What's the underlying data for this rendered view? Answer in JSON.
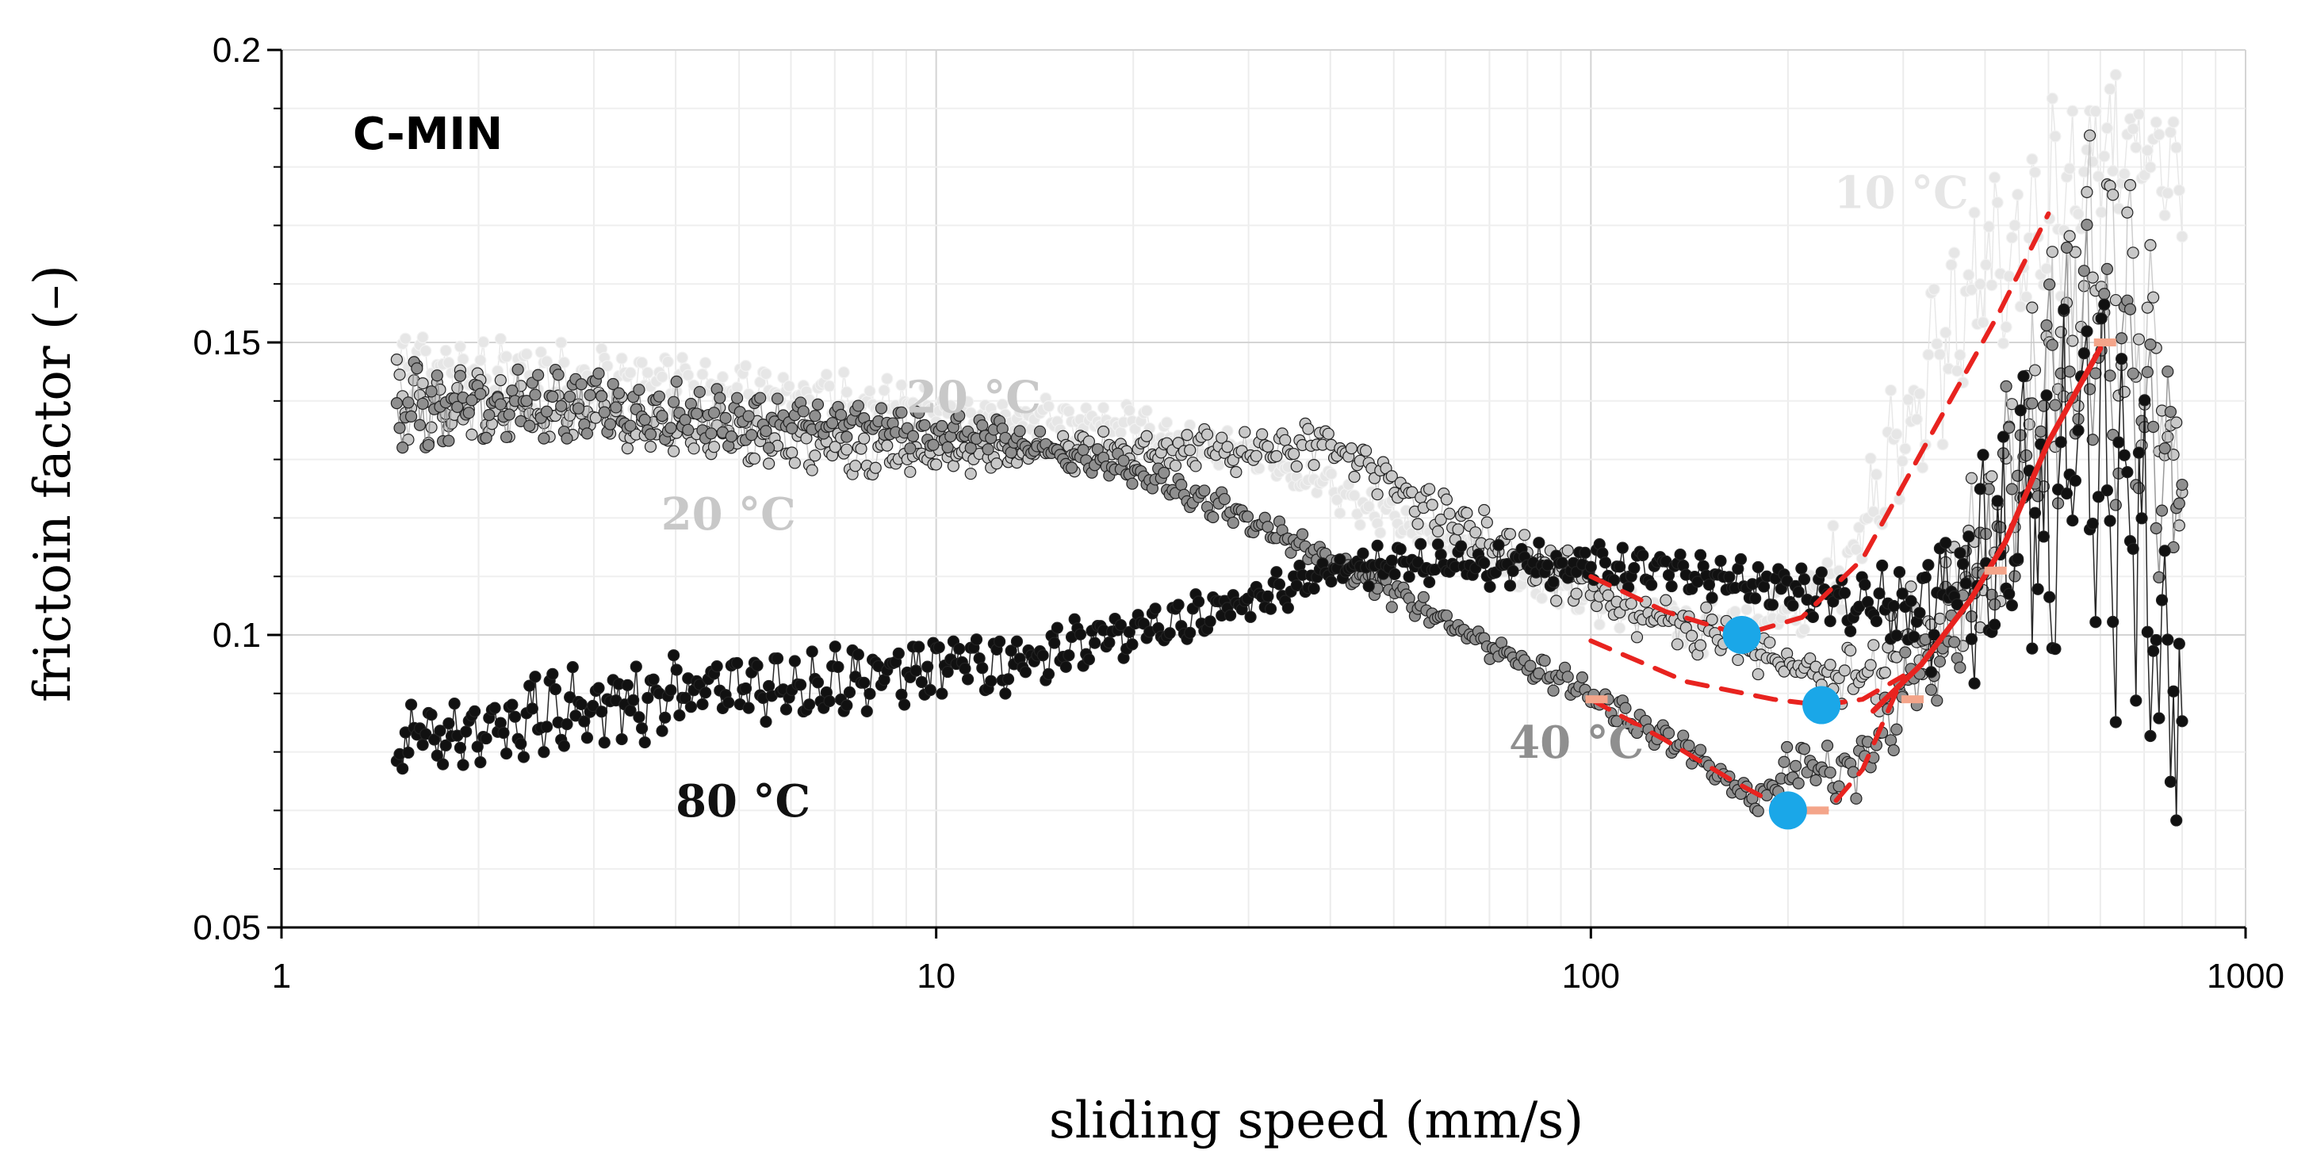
{
  "chart_data": {
    "type": "scatter",
    "title": "",
    "xlabel": "sliding speed (mm/s)",
    "ylabel": "frictoin factor (–)",
    "xscale": "log",
    "xlim": [
      1,
      1000
    ],
    "ylim": [
      0.05,
      0.2
    ],
    "xticks": [
      1,
      10,
      100,
      1000
    ],
    "xtick_labels": [
      "1",
      "10",
      "100",
      "1000"
    ],
    "yticks": [
      0.05,
      0.1,
      0.15,
      0.2
    ],
    "ytick_labels": [
      "0.05",
      "0.1",
      "0.15",
      "0.2"
    ],
    "grid": true,
    "panel_label": "C-MIN",
    "colors": {
      "t10": "#e6e6e6",
      "t20": "#c8c8c8",
      "t40": "#8f8f8f",
      "t80": "#111111",
      "fit": "#e8231f",
      "minima": "#1aa7e8",
      "bracket": "#f4a58a"
    },
    "series": [
      {
        "name": "10 °C",
        "label_text": "10 °C",
        "color_key": "t10",
        "x": [
          1.5,
          2,
          3,
          5,
          8,
          12,
          20,
          30,
          45,
          70,
          100,
          150,
          200,
          260,
          300,
          350,
          420,
          500,
          600,
          700,
          800
        ],
        "y": [
          0.146,
          0.145,
          0.144,
          0.142,
          0.14,
          0.137,
          0.136,
          0.131,
          0.122,
          0.113,
          0.106,
          0.101,
          0.104,
          0.117,
          0.135,
          0.15,
          0.163,
          0.172,
          0.18,
          0.182,
          0.176
        ],
        "jitter": [
          0.005,
          0.005,
          0.005,
          0.004,
          0.004,
          0.003,
          0.003,
          0.003,
          0.003,
          0.003,
          0.003,
          0.004,
          0.005,
          0.008,
          0.012,
          0.015,
          0.016,
          0.016,
          0.015,
          0.012,
          0.008
        ]
      },
      {
        "name": "20 °C",
        "label_text": "20 °C",
        "color_key": "t20",
        "x": [
          1.5,
          2,
          3,
          5,
          8,
          12,
          20,
          30,
          40,
          60,
          100,
          150,
          200,
          250,
          300,
          400,
          500,
          600,
          700,
          800
        ],
        "y": [
          0.14,
          0.139,
          0.137,
          0.134,
          0.131,
          0.131,
          0.132,
          0.131,
          0.133,
          0.12,
          0.108,
          0.1,
          0.095,
          0.092,
          0.097,
          0.115,
          0.145,
          0.165,
          0.15,
          0.13
        ],
        "jitter": [
          0.006,
          0.005,
          0.004,
          0.004,
          0.003,
          0.003,
          0.003,
          0.003,
          0.003,
          0.004,
          0.004,
          0.004,
          0.004,
          0.005,
          0.008,
          0.015,
          0.02,
          0.02,
          0.018,
          0.012
        ]
      },
      {
        "name": "40 °C",
        "label_text": "40 °C",
        "color_key": "t40",
        "x": [
          1.5,
          2,
          3,
          5,
          8,
          12,
          20,
          30,
          45,
          70,
          100,
          150,
          180,
          200,
          250,
          300,
          400,
          500,
          600,
          700,
          800
        ],
        "y": [
          0.139,
          0.14,
          0.139,
          0.137,
          0.136,
          0.134,
          0.128,
          0.12,
          0.11,
          0.098,
          0.09,
          0.078,
          0.071,
          0.078,
          0.076,
          0.09,
          0.112,
          0.14,
          0.15,
          0.135,
          0.12
        ],
        "jitter": [
          0.007,
          0.006,
          0.005,
          0.004,
          0.003,
          0.003,
          0.002,
          0.002,
          0.002,
          0.002,
          0.002,
          0.002,
          0.002,
          0.004,
          0.004,
          0.008,
          0.015,
          0.02,
          0.022,
          0.02,
          0.015
        ]
      },
      {
        "name": "80 °C",
        "label_text": "80 °C",
        "color_key": "t80",
        "x": [
          1.5,
          2,
          3,
          5,
          8,
          12,
          20,
          30,
          45,
          70,
          100,
          150,
          200,
          250,
          300,
          400,
          500,
          600,
          700,
          800
        ],
        "y": [
          0.082,
          0.084,
          0.088,
          0.091,
          0.093,
          0.095,
          0.1,
          0.106,
          0.112,
          0.112,
          0.112,
          0.11,
          0.108,
          0.105,
          0.104,
          0.11,
          0.12,
          0.125,
          0.11,
          0.085
        ],
        "jitter": [
          0.006,
          0.006,
          0.006,
          0.006,
          0.005,
          0.005,
          0.004,
          0.003,
          0.003,
          0.003,
          0.003,
          0.003,
          0.003,
          0.004,
          0.008,
          0.018,
          0.025,
          0.03,
          0.03,
          0.02
        ]
      }
    ],
    "fit_curves": [
      {
        "name": "fit-10",
        "style": "dashed",
        "x": [
          100,
          130,
          170,
          210,
          260,
          330,
          420,
          500
        ],
        "y": [
          0.11,
          0.104,
          0.1,
          0.103,
          0.113,
          0.134,
          0.155,
          0.172
        ]
      },
      {
        "name": "fit-20",
        "style": "dashed",
        "x": [
          100,
          140,
          190,
          225,
          260,
          300
        ],
        "y": [
          0.099,
          0.092,
          0.089,
          0.088,
          0.089,
          0.093
        ]
      },
      {
        "name": "fit-40",
        "style": "dashed",
        "x": [
          100,
          130,
          165,
          200,
          230,
          260,
          300
        ],
        "y": [
          0.089,
          0.082,
          0.075,
          0.07,
          0.07,
          0.077,
          0.093
        ]
      },
      {
        "name": "fit-80",
        "style": "solid",
        "x": [
          270,
          320,
          380,
          430,
          500,
          600
        ],
        "y": [
          0.087,
          0.095,
          0.106,
          0.116,
          0.133,
          0.149
        ]
      }
    ],
    "minima": [
      {
        "x": 170,
        "y": 0.1
      },
      {
        "x": 225,
        "y": 0.088
      },
      {
        "x": 200,
        "y": 0.07
      }
    ],
    "bracket_marks": [
      {
        "x": 102,
        "y": 0.089
      },
      {
        "x": 222,
        "y": 0.07
      },
      {
        "x": 310,
        "y": 0.089
      },
      {
        "x": 415,
        "y": 0.111
      },
      {
        "x": 610,
        "y": 0.15
      }
    ],
    "annotations": [
      {
        "name": "label-10",
        "text": "10 °C",
        "x": 235,
        "y": 0.173,
        "color_key": "t10"
      },
      {
        "name": "label-20-upper",
        "text": "20 °C",
        "x": 9.0,
        "y": 0.138,
        "color_key": "t20"
      },
      {
        "name": "label-20",
        "text": "20 °C",
        "x": 3.8,
        "y": 0.118,
        "color_key": "t20"
      },
      {
        "name": "label-40",
        "text": "40 °C",
        "x": 75,
        "y": 0.079,
        "color_key": "t40"
      },
      {
        "name": "label-80",
        "text": "80 °C",
        "x": 4.0,
        "y": 0.069,
        "color_key": "t80"
      }
    ]
  }
}
